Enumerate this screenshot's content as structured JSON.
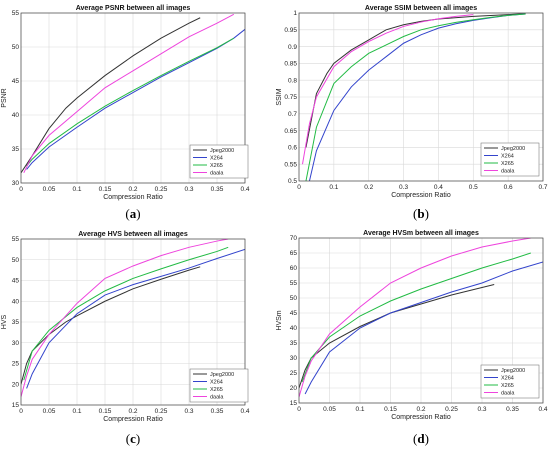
{
  "chart_data": [
    {
      "type": "line",
      "panel_label": "a",
      "title": "Average PSNR between all images",
      "xlabel": "Compression Ratio",
      "ylabel": "PSNR",
      "xlim": [
        0,
        0.4
      ],
      "ylim": [
        30,
        55
      ],
      "xticks": [
        "0",
        "0.05",
        "0.1",
        "0.15",
        "0.2",
        "0.25",
        "0.3",
        "0.35",
        "0.4"
      ],
      "yticks": [
        "30",
        "35",
        "40",
        "45",
        "50",
        "55"
      ],
      "grid": true,
      "legend_position": "bottom-right",
      "series": [
        {
          "name": "Jpeg2000",
          "color": "#333333",
          "x": [
            0,
            0.02,
            0.05,
            0.08,
            0.1,
            0.15,
            0.2,
            0.25,
            0.3,
            0.32
          ],
          "y": [
            31.5,
            34,
            38,
            41,
            42.5,
            45.8,
            48.7,
            51.3,
            53.5,
            54.3
          ]
        },
        {
          "name": "X264",
          "color": "#3344cc",
          "x": [
            0.01,
            0.02,
            0.05,
            0.1,
            0.15,
            0.2,
            0.25,
            0.3,
            0.35,
            0.38,
            0.4
          ],
          "y": [
            32,
            33,
            35.3,
            38.2,
            41,
            43.3,
            45.6,
            47.7,
            49.8,
            51.3,
            52.6
          ]
        },
        {
          "name": "X265",
          "color": "#22bb44",
          "x": [
            0.01,
            0.02,
            0.05,
            0.1,
            0.15,
            0.2,
            0.25,
            0.3,
            0.35,
            0.38
          ],
          "y": [
            32.5,
            33.5,
            35.8,
            38.7,
            41.3,
            43.6,
            45.8,
            47.9,
            49.9,
            51.3
          ]
        },
        {
          "name": "daala",
          "color": "#ee44dd",
          "x": [
            0.005,
            0.02,
            0.05,
            0.1,
            0.15,
            0.2,
            0.25,
            0.3,
            0.35,
            0.38
          ],
          "y": [
            31.5,
            34,
            37,
            40.5,
            44,
            46.5,
            49,
            51.5,
            53.5,
            54.8
          ]
        }
      ]
    },
    {
      "type": "line",
      "panel_label": "b",
      "title": "Average SSIM between all images",
      "xlabel": "Compression Ratio",
      "ylabel": "SSIM",
      "xlim": [
        0,
        0.7
      ],
      "ylim": [
        0.5,
        1
      ],
      "xticks": [
        "0",
        "0.1",
        "0.2",
        "0.3",
        "0.4",
        "0.5",
        "0.6",
        "0.7"
      ],
      "yticks": [
        "0.5",
        "0.55",
        "0.6",
        "0.65",
        "0.7",
        "0.75",
        "0.8",
        "0.85",
        "0.9",
        "0.95",
        "1"
      ],
      "grid": true,
      "legend_position": "bottom-right",
      "series": [
        {
          "name": "Jpeg2000",
          "color": "#333333",
          "x": [
            0.02,
            0.05,
            0.08,
            0.1,
            0.15,
            0.2,
            0.25,
            0.3,
            0.35,
            0.4,
            0.5,
            0.6,
            0.65
          ],
          "y": [
            0.6,
            0.76,
            0.82,
            0.85,
            0.89,
            0.92,
            0.95,
            0.965,
            0.975,
            0.982,
            0.99,
            0.995,
            0.998
          ]
        },
        {
          "name": "X264",
          "color": "#3344cc",
          "x": [
            0.03,
            0.05,
            0.1,
            0.15,
            0.2,
            0.25,
            0.3,
            0.35,
            0.4,
            0.45,
            0.5,
            0.55,
            0.6,
            0.65
          ],
          "y": [
            0.5,
            0.59,
            0.71,
            0.78,
            0.83,
            0.87,
            0.91,
            0.935,
            0.955,
            0.968,
            0.978,
            0.986,
            0.993,
            0.997
          ]
        },
        {
          "name": "X265",
          "color": "#22bb44",
          "x": [
            0.02,
            0.05,
            0.1,
            0.15,
            0.2,
            0.25,
            0.3,
            0.35,
            0.4,
            0.45,
            0.5,
            0.55,
            0.6,
            0.65
          ],
          "y": [
            0.5,
            0.66,
            0.79,
            0.84,
            0.88,
            0.905,
            0.93,
            0.95,
            0.962,
            0.972,
            0.98,
            0.987,
            0.993,
            0.997
          ]
        },
        {
          "name": "daala",
          "color": "#ee44dd",
          "x": [
            0.01,
            0.03,
            0.05,
            0.1,
            0.15,
            0.2,
            0.25,
            0.3,
            0.35,
            0.4,
            0.45,
            0.5
          ],
          "y": [
            0.55,
            0.67,
            0.75,
            0.84,
            0.885,
            0.915,
            0.94,
            0.96,
            0.973,
            0.983,
            0.99,
            0.995
          ]
        }
      ]
    },
    {
      "type": "line",
      "panel_label": "c",
      "title": "Average HVS between all images",
      "xlabel": "Compression Ratio",
      "ylabel": "HVS",
      "xlim": [
        0,
        0.4
      ],
      "ylim": [
        15,
        55
      ],
      "xticks": [
        "0",
        "0.05",
        "0.1",
        "0.15",
        "0.2",
        "0.25",
        "0.3",
        "0.35",
        "0.4"
      ],
      "yticks": [
        "15",
        "20",
        "25",
        "30",
        "35",
        "40",
        "45",
        "50",
        "55"
      ],
      "grid": true,
      "legend_position": "bottom-right",
      "series": [
        {
          "name": "Jpeg2000",
          "color": "#333333",
          "x": [
            0,
            0.01,
            0.02,
            0.05,
            0.08,
            0.1,
            0.15,
            0.2,
            0.25,
            0.3,
            0.32
          ],
          "y": [
            20,
            25,
            28,
            32,
            35,
            36.5,
            40,
            43,
            45.3,
            47.5,
            48.3
          ]
        },
        {
          "name": "X264",
          "color": "#3344cc",
          "x": [
            0.01,
            0.02,
            0.05,
            0.1,
            0.15,
            0.2,
            0.25,
            0.3,
            0.35,
            0.4
          ],
          "y": [
            19,
            22.5,
            30,
            37,
            41.5,
            44,
            46,
            48,
            50.3,
            52.5
          ]
        },
        {
          "name": "X265",
          "color": "#22bb44",
          "x": [
            0.005,
            0.02,
            0.05,
            0.1,
            0.15,
            0.2,
            0.25,
            0.3,
            0.35,
            0.37
          ],
          "y": [
            21,
            28,
            33,
            38.5,
            42.5,
            45.5,
            47.8,
            50,
            52,
            53
          ]
        },
        {
          "name": "daala",
          "color": "#ee44dd",
          "x": [
            0,
            0.01,
            0.02,
            0.05,
            0.1,
            0.15,
            0.2,
            0.25,
            0.3,
            0.35,
            0.37
          ],
          "y": [
            17,
            22,
            26,
            32,
            39.5,
            45.5,
            48.5,
            51,
            53,
            54.5,
            55
          ]
        }
      ]
    },
    {
      "type": "line",
      "panel_label": "d",
      "title": "Average HVSm between all images",
      "xlabel": "Compression Ratio",
      "ylabel": "HVSm",
      "xlim": [
        0,
        0.4
      ],
      "ylim": [
        15,
        70
      ],
      "xticks": [
        "0",
        "0.05",
        "0.1",
        "0.15",
        "0.2",
        "0.25",
        "0.3",
        "0.35",
        "0.4"
      ],
      "yticks": [
        "15",
        "20",
        "25",
        "30",
        "35",
        "40",
        "45",
        "50",
        "55",
        "60",
        "65",
        "70"
      ],
      "grid": true,
      "legend_position": "bottom-right",
      "series": [
        {
          "name": "Jpeg2000",
          "color": "#333333",
          "x": [
            0,
            0.01,
            0.02,
            0.05,
            0.1,
            0.15,
            0.2,
            0.25,
            0.3,
            0.32
          ],
          "y": [
            20,
            26,
            30,
            35,
            40.5,
            45,
            48,
            51,
            53.5,
            54.5
          ]
        },
        {
          "name": "X264",
          "color": "#3344cc",
          "x": [
            0.01,
            0.02,
            0.05,
            0.1,
            0.15,
            0.2,
            0.25,
            0.3,
            0.35,
            0.4
          ],
          "y": [
            18,
            22,
            32,
            40,
            45,
            48.5,
            52,
            55,
            59,
            62
          ]
        },
        {
          "name": "X265",
          "color": "#22bb44",
          "x": [
            0.005,
            0.02,
            0.05,
            0.1,
            0.15,
            0.2,
            0.25,
            0.3,
            0.35,
            0.38
          ],
          "y": [
            22,
            30,
            37,
            44,
            49,
            53,
            56.5,
            60,
            63,
            65
          ]
        },
        {
          "name": "daala",
          "color": "#ee44dd",
          "x": [
            0,
            0.01,
            0.02,
            0.05,
            0.1,
            0.15,
            0.2,
            0.25,
            0.3,
            0.35,
            0.38
          ],
          "y": [
            17,
            24,
            29,
            38,
            47,
            55,
            60,
            64,
            67,
            69,
            70
          ]
        }
      ]
    }
  ]
}
